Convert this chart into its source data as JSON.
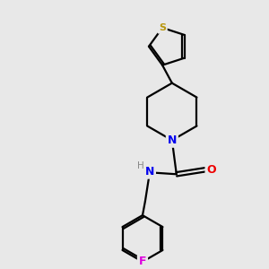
{
  "background_color": "#e8e8e8",
  "bond_color": "#000000",
  "atom_colors": {
    "S": "#b8960c",
    "N_pip": "#0000ee",
    "N_amide": "#0000ee",
    "O": "#ee0000",
    "F": "#dd00dd",
    "H": "#888888"
  },
  "figsize": [
    3.0,
    3.0
  ],
  "dpi": 100
}
